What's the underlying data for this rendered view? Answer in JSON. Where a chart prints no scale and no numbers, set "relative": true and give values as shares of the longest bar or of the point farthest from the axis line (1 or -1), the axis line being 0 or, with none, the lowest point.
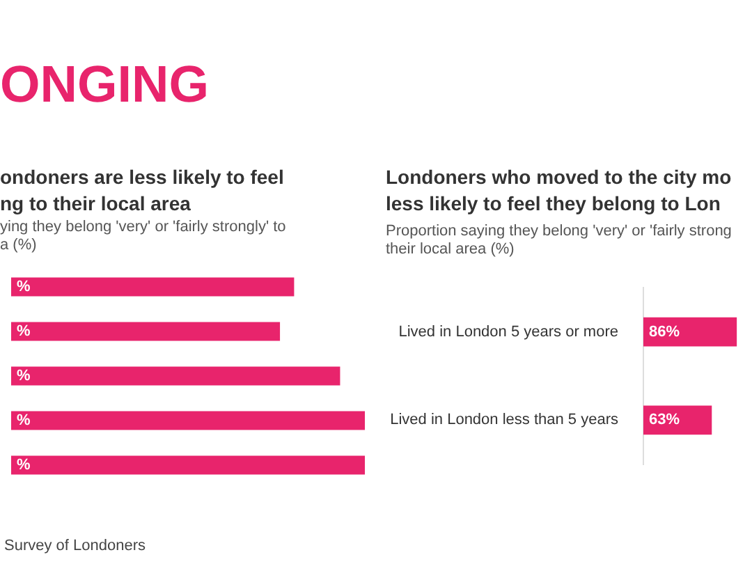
{
  "chart_data": [
    {
      "type": "bar",
      "orientation": "horizontal",
      "relative": true,
      "title": "ondoners are less likely to feel\nng to their local area",
      "subtitle": "ying they belong 'very' or 'fairly strongly' to\na (%)",
      "annotations": [
        "ONGING",
        "Survey of Londoners",
        "%",
        "%",
        "%",
        "%",
        "%"
      ],
      "categories": [
        null,
        null,
        null,
        null,
        null
      ],
      "series": [
        {
          "color": "#e8246c",
          "values": [
            0.8,
            0.76,
            0.93,
            1,
            1
          ]
        }
      ]
    },
    {
      "type": "bar",
      "orientation": "horizontal",
      "title": "Londoners who moved to the city mo\nless likely to feel they belong to Lon",
      "subtitle": "Proportion saying they belong 'very' or 'fairly strong\ntheir local area (%)",
      "categories": [
        "Lived in London 5 years or more",
        "Lived in London less than 5 years"
      ],
      "tick_labels": "y",
      "series": [
        {
          "color": "#e8246c",
          "values": [
            86,
            63
          ],
          "value_labels": [
            "86%",
            "63%"
          ]
        }
      ]
    }
  ]
}
